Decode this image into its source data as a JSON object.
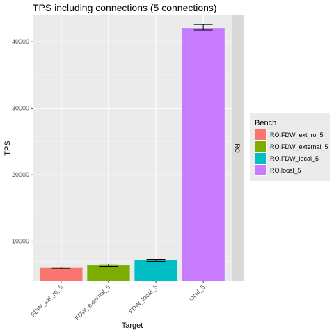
{
  "chart_data": {
    "type": "bar",
    "title": "TPS including connections (5 connections)",
    "xlabel": "Target",
    "ylabel": "TPS",
    "categories": [
      "FDW_ext_ro_5",
      "FDW_external_5",
      "FDW_local_5",
      "local_5"
    ],
    "values": [
      6020,
      6400,
      7150,
      42100
    ],
    "error_low": [
      5900,
      6250,
      6980,
      41800
    ],
    "error_high": [
      6130,
      6550,
      7300,
      42620
    ],
    "series_names": [
      "RO.FDW_ext_ro_5",
      "RO.FDW_external_5",
      "RO.FDW_local_5",
      "RO.local_5"
    ],
    "colors": [
      "#F8766D",
      "#7CAE00",
      "#00BFC4",
      "#C77CFF"
    ],
    "y_ticks": [
      10000,
      20000,
      30000,
      40000
    ],
    "ylim": [
      4000,
      44000
    ],
    "grid": true,
    "legend_title": "Bench",
    "legend_position": "right",
    "facet_label": "RO"
  }
}
